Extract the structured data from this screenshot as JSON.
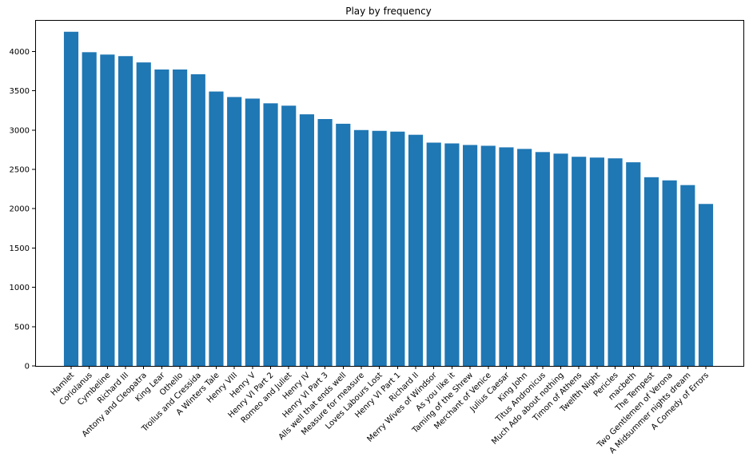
{
  "chart_data": {
    "type": "bar",
    "title": "Play by frequency",
    "xlabel": "",
    "ylabel": "",
    "ylim": [
      0,
      4400
    ],
    "yticks": [
      0,
      500,
      1000,
      1500,
      2000,
      2500,
      3000,
      3500,
      4000
    ],
    "grid": false,
    "bar_color": "#1f77b4",
    "categories": [
      "Hamlet",
      "Coriolanus",
      "Cymbeline",
      "Richard III",
      "Antony and Cleopatra",
      "King Lear",
      "Othello",
      "Troilus and Cressida",
      "A Winters Tale",
      "Henry VIII",
      "Henry V",
      "Henry VI Part 2",
      "Romeo and Juliet",
      "Henry IV",
      "Henry VI Part 3",
      "Alls well that ends well",
      "Measure for measure",
      "Loves Labours Lost",
      "Henry VI Part 1",
      "Richard II",
      "Merry Wives of Windsor",
      "As you like it",
      "Taming of the Shrew",
      "Merchant of Venice",
      "Julius Caesar",
      "King John",
      "Titus Andronicus",
      "Much Ado about nothing",
      "Timon of Athens",
      "Twelfth Night",
      "Pericles",
      "macbeth",
      "The Tempest",
      "Two Gentlemen of Verona",
      "A Midsummer nights dream",
      "A Comedy of Errors"
    ],
    "values": [
      4250,
      3990,
      3960,
      3940,
      3860,
      3770,
      3770,
      3710,
      3490,
      3420,
      3400,
      3340,
      3310,
      3200,
      3140,
      3080,
      3000,
      2990,
      2980,
      2940,
      2840,
      2830,
      2810,
      2800,
      2780,
      2760,
      2720,
      2700,
      2660,
      2650,
      2640,
      2590,
      2400,
      2360,
      2300,
      2060
    ]
  }
}
